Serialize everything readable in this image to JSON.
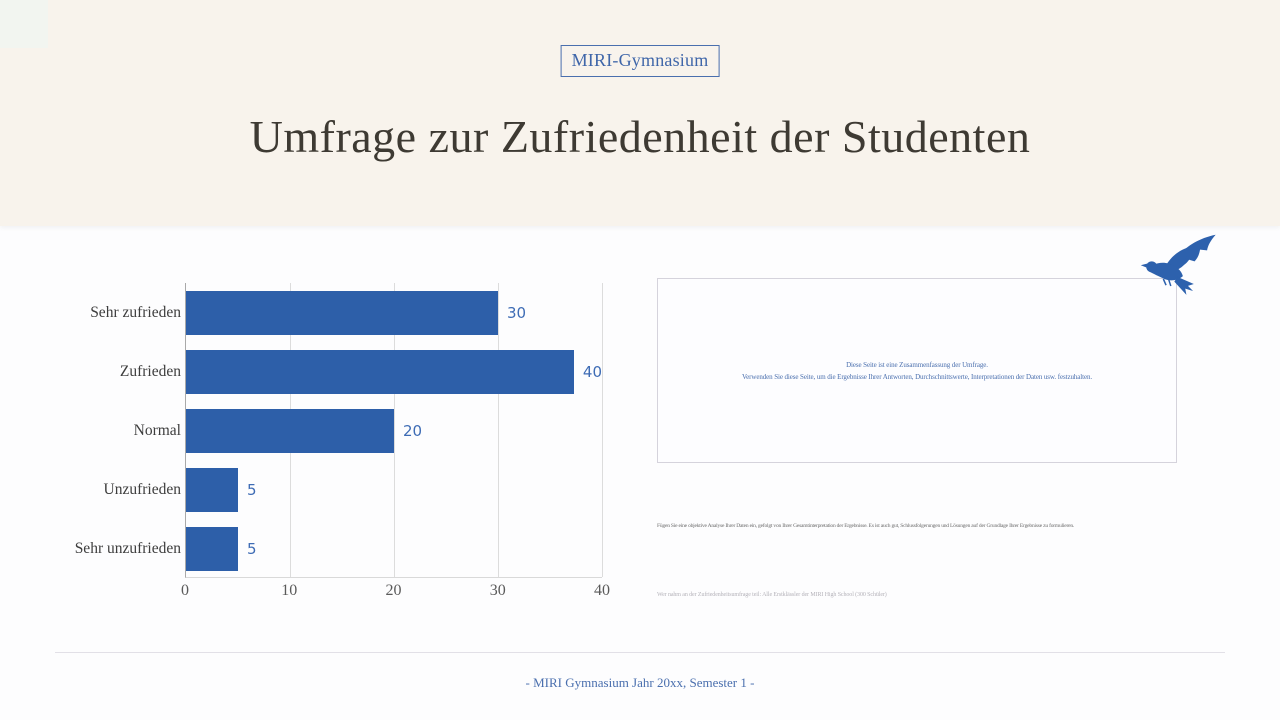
{
  "header": {
    "badge": "MIRI-Gymnasium",
    "title": "Umfrage zur Zufriedenheit der Studenten"
  },
  "chart_data": {
    "type": "bar",
    "orientation": "horizontal",
    "categories": [
      "Sehr zufrieden",
      "Zufrieden",
      "Normal",
      "Unzufrieden",
      "Sehr unzufrieden"
    ],
    "values": [
      30,
      40,
      20,
      5,
      5
    ],
    "x_ticks": [
      "0",
      "10",
      "20",
      "30",
      "40"
    ],
    "xlim": [
      0,
      40
    ],
    "grid": true,
    "legend": false,
    "bar_color": "#2d5fa9",
    "value_label_color": "#3e6cb5"
  },
  "summary_panel": {
    "line1": "Diese Seite ist eine Zusammenfassung der Umfrage.",
    "line2": "Verwenden Sie diese Seite, um die Ergebnisse Ihrer Antworten, Durchschnittswerte, Interpretationen der Daten usw. festzuhalten."
  },
  "notes": {
    "analysis": "Fügen Sie eine objektive Analyse Ihrer Daten ein, gefolgt von Ihrer Gesamtinterpretation der Ergebnisse. Es ist auch gut, Schlussfolgerungen und Lösungen auf der Grundlage Ihrer Ergebnisse zu formulieren.",
    "participants": "Wer nahm an der Zufriedenheitsumfrage teil: Alle Erstklässler der MIRI High School (300 Schüler)"
  },
  "footer": {
    "text": "- MIRI Gymnasium Jahr 20xx, Semester 1 -"
  },
  "colors": {
    "header_bg": "#f8f3ec",
    "title_text": "#3e3a33",
    "accent_blue": "#4a6fae",
    "bird_blue": "#2d61ad"
  }
}
